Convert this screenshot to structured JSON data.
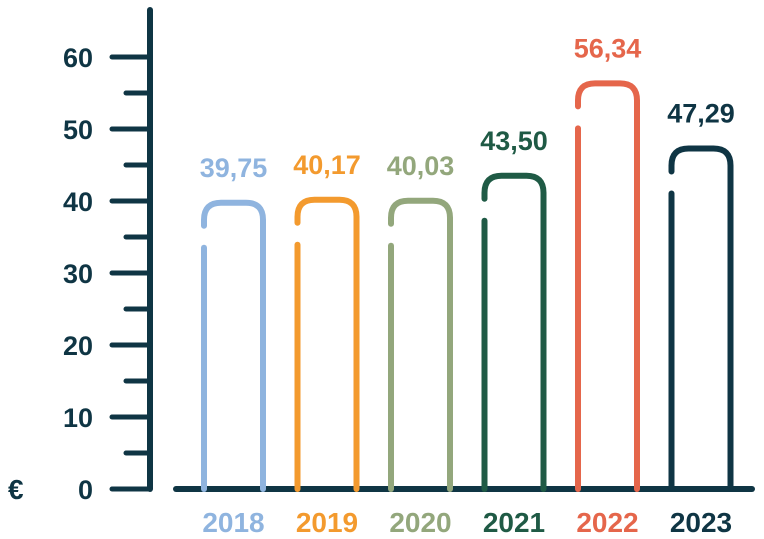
{
  "chart_data": {
    "type": "bar",
    "title": "",
    "xlabel": "",
    "ylabel": "",
    "currency_symbol": "€",
    "categories": [
      "2018",
      "2019",
      "2020",
      "2021",
      "2022",
      "2023"
    ],
    "values": [
      39.75,
      40.17,
      40.03,
      43.5,
      56.34,
      47.29
    ],
    "value_labels": [
      "39,75",
      "40,17",
      "40,03",
      "43,50",
      "56,34",
      "47,29"
    ],
    "colors": [
      "#8fb4df",
      "#f39a2e",
      "#93a77c",
      "#1f5a45",
      "#e5664b",
      "#0f3544"
    ],
    "ylim": [
      0,
      60
    ],
    "yticks": [
      0,
      10,
      20,
      30,
      40,
      50,
      60
    ],
    "ytick_labels": [
      "0",
      "10",
      "20",
      "30",
      "40",
      "50",
      "60"
    ],
    "grid": false,
    "legend": "none"
  }
}
